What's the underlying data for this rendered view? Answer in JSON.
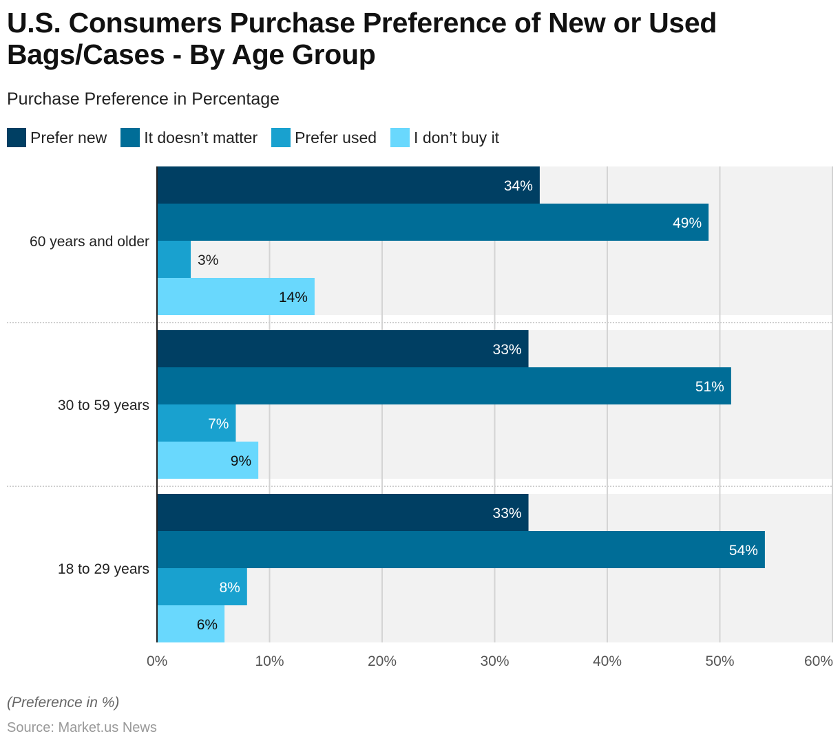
{
  "chart_data": {
    "type": "bar",
    "orientation": "horizontal",
    "title": "U.S. Consumers Purchase Preference of New or Used Bags/Cases - By Age Group",
    "subtitle": "Purchase Preference in Percentage",
    "categories": [
      "60 years and older",
      "30 to 59 years",
      "18 to 29 years"
    ],
    "series": [
      {
        "name": "Prefer new",
        "color": "#003f63",
        "values": [
          34,
          33,
          33
        ]
      },
      {
        "name": "It doesn’t matter",
        "color": "#006d97",
        "values": [
          49,
          51,
          54
        ]
      },
      {
        "name": "Prefer used",
        "color": "#19a1cf",
        "values": [
          3,
          7,
          8
        ]
      },
      {
        "name": "I don’t buy it",
        "color": "#69d8fd",
        "values": [
          14,
          9,
          6
        ]
      }
    ],
    "xlim": [
      0,
      60
    ],
    "xticks": [
      "0%",
      "10%",
      "20%",
      "30%",
      "40%",
      "50%",
      "60%"
    ],
    "xlabel": "",
    "ylabel": "",
    "grid": true,
    "legend": "top-left",
    "value_suffix": "%",
    "note": "(Preference in %)",
    "source": "Source: Market.us News"
  }
}
